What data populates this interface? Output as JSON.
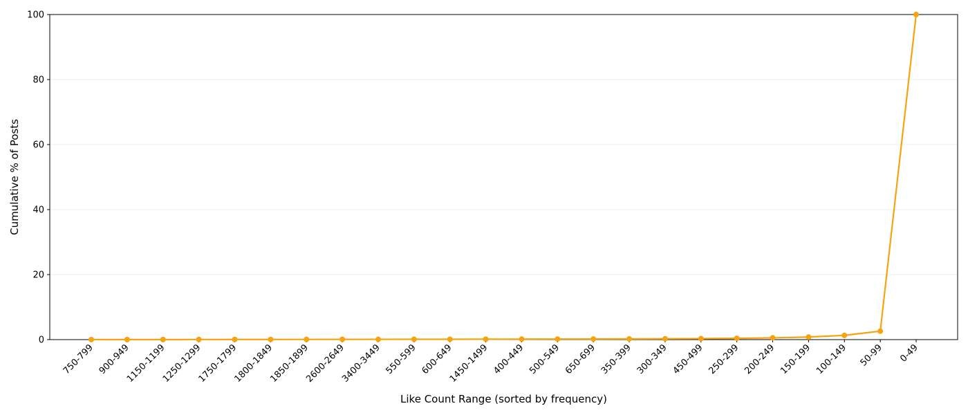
{
  "chart_data": {
    "type": "line",
    "xlabel": "Like Count Range (sorted by frequency)",
    "ylabel": "Cumulative % of Posts",
    "ylim": [
      0,
      100
    ],
    "yticks": [
      0,
      20,
      40,
      60,
      80,
      100
    ],
    "grid": "y-major",
    "legend": "none",
    "color": "#f5a30f",
    "categories": [
      "750-799",
      "900-949",
      "1150-1199",
      "1250-1299",
      "1750-1799",
      "1800-1849",
      "1850-1899",
      "2600-2649",
      "3400-3449",
      "550-599",
      "600-649",
      "1450-1499",
      "400-449",
      "500-549",
      "650-699",
      "350-399",
      "300-349",
      "450-499",
      "250-299",
      "200-249",
      "150-199",
      "100-149",
      "50-99",
      "0-49"
    ],
    "values": [
      0.01,
      0.02,
      0.03,
      0.04,
      0.05,
      0.06,
      0.07,
      0.08,
      0.09,
      0.1,
      0.11,
      0.13,
      0.15,
      0.17,
      0.19,
      0.22,
      0.26,
      0.31,
      0.4,
      0.55,
      0.8,
      1.3,
      2.6,
      100.0
    ]
  }
}
